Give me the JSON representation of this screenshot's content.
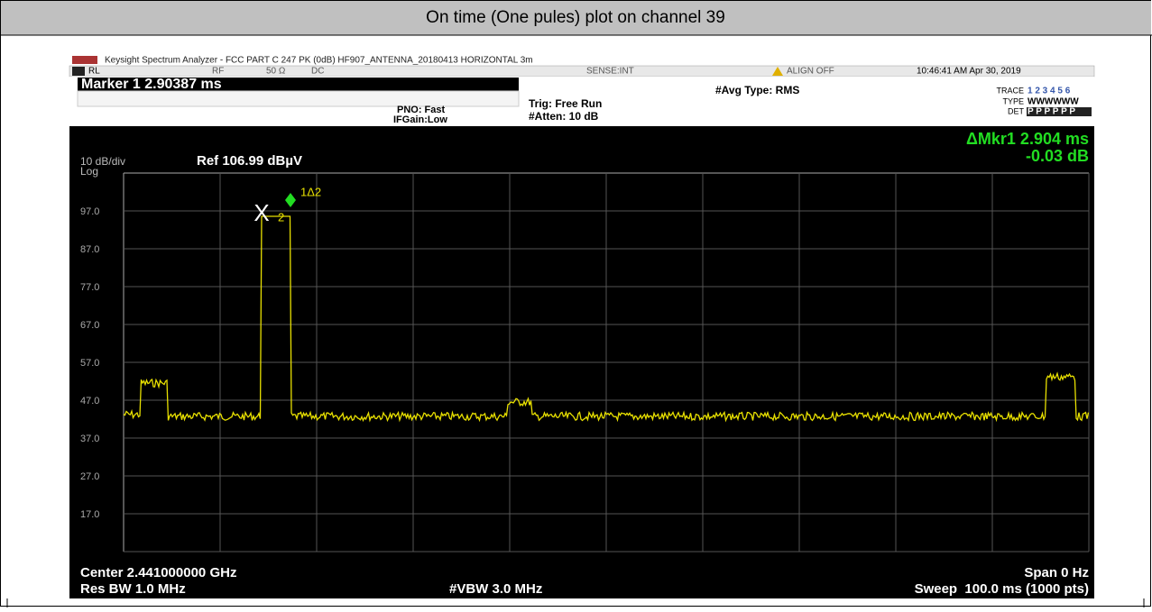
{
  "header": {
    "title": "On time (One pules) plot on channel 39"
  },
  "window": {
    "title": "Keysight Spectrum Analyzer - FCC PART C 247 PK (0dB) HF907_ANTENNA_20180413 HORIZONTAL 3m"
  },
  "status": {
    "rl": "RL",
    "rf": "RF",
    "impedance": "50 Ω",
    "coupling": "DC",
    "sense": "SENSE:INT",
    "align": "ALIGN OFF",
    "time": "10:46:41 AM Apr 30, 2019"
  },
  "settings": {
    "marker": "Marker 1 2.90387 ms",
    "pno": "PNO: Fast",
    "ifgain": "IFGain:Low",
    "trig": "Trig: Free Run",
    "atten": "#Atten: 10 dB",
    "avg": "#Avg Type: RMS",
    "trace_label": "TRACE",
    "trace_value": "1 2 3 4 5 6",
    "type_label": "TYPE",
    "type_value": "WWWWWW",
    "det_label": "DET",
    "det_value": "P P P P P P"
  },
  "readout": {
    "delta": "ΔMkr1 2.904 ms",
    "level": "-0.03 dB"
  },
  "plot": {
    "scale": "10 dB/div",
    "log": "Log",
    "ref": "Ref 106.99 dBµV",
    "y_labels": [
      "97.0",
      "87.0",
      "77.0",
      "67.0",
      "57.0",
      "47.0",
      "37.0",
      "27.0",
      "17.0"
    ],
    "marker_delta": "1Δ2",
    "marker_ref": "2",
    "marker_x": "X"
  },
  "footer": {
    "center": "Center 2.441000000 GHz",
    "span": "Span 0 Hz",
    "rbw": "Res BW 1.0 MHz",
    "vbw": "#VBW 3.0 MHz",
    "sweep": "Sweep  100.0 ms (1000 pts)"
  }
}
